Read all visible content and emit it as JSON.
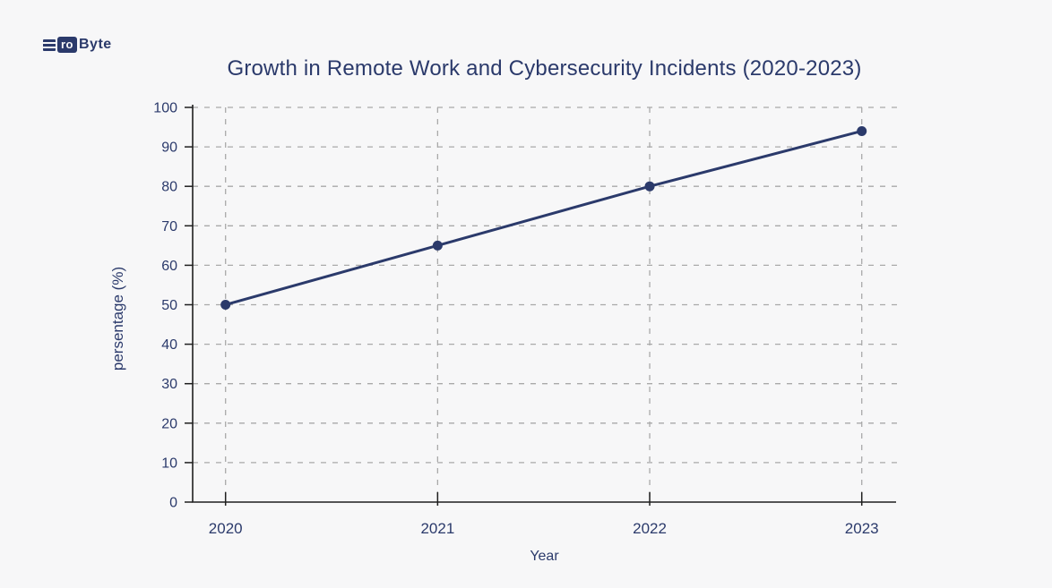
{
  "page": {
    "background": "#F7F7F8"
  },
  "logo": {
    "text": "ProByte",
    "badge_text": "ro",
    "suffix": "Byte",
    "color": "#2B3A6B"
  },
  "chart_data": {
    "type": "line",
    "title": "Growth in Remote Work and Cybersecurity Incidents (2020-2023)",
    "xlabel": "Year",
    "ylabel": "persentage (%)",
    "categories": [
      "2020",
      "2021",
      "2022",
      "2023"
    ],
    "values": [
      50,
      65,
      80,
      94
    ],
    "ylim": [
      0,
      100
    ],
    "ytick_step": 10,
    "ytick_labels": [
      "0",
      "10",
      "20",
      "30",
      "40",
      "50",
      "60",
      "70",
      "80",
      "90",
      "100"
    ],
    "grid": true,
    "grid_style": "dashed",
    "legend_position": "none",
    "colors": {
      "line": "#2B3A6B",
      "marker": "#2B3A6B",
      "grid": "#A9A9A9",
      "axis": "#1F1F1F",
      "text": "#2B3A6B",
      "background": "#F7F7F8"
    }
  }
}
